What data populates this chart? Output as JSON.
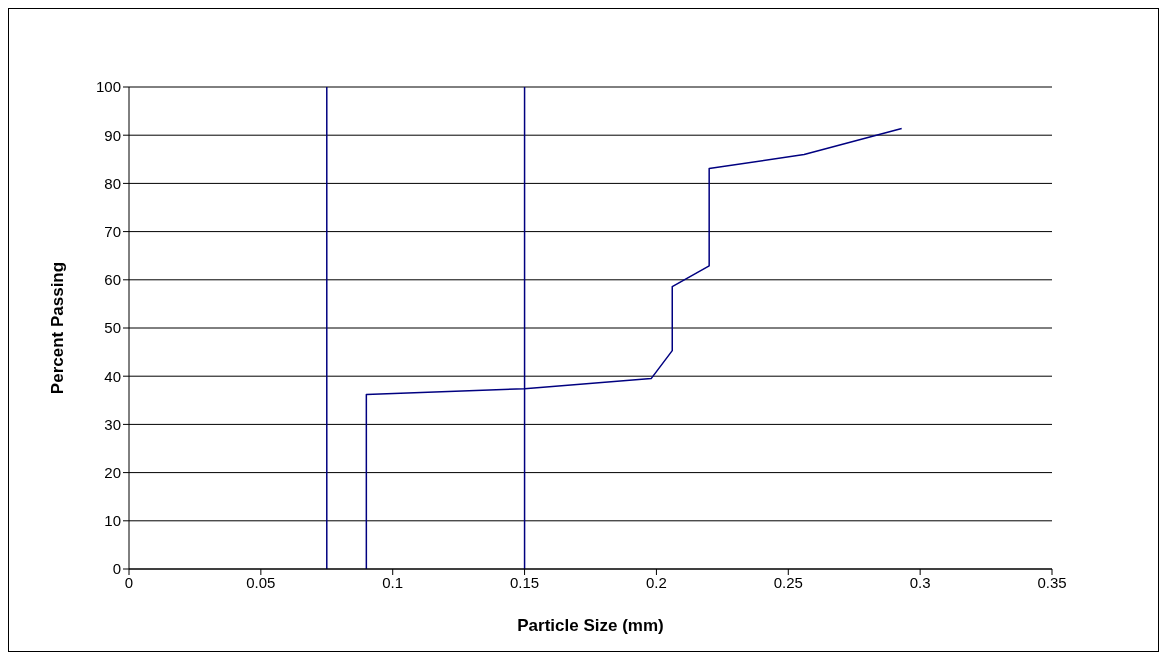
{
  "chart_data": {
    "type": "line",
    "xlabel": "Particle Size (mm)",
    "ylabel": "Percent Passing",
    "x": [
      0.09,
      0.09,
      0.15,
      0.198,
      0.206,
      0.206,
      0.22,
      0.22,
      0.256,
      0.293
    ],
    "series": [
      {
        "color": "#000080",
        "values": [
          0,
          36.2,
          37.4,
          39.5,
          45.3,
          58.6,
          62.9,
          83.1,
          86,
          91.4
        ]
      }
    ],
    "xlim": [
      0,
      0.35
    ],
    "xticks": [
      0,
      0.05,
      0.1,
      0.15,
      0.2,
      0.25,
      0.3,
      0.35
    ],
    "ylim": [
      0,
      100
    ],
    "yticks": [
      0,
      10,
      20,
      30,
      40,
      50,
      60,
      70,
      80,
      90,
      100
    ],
    "grid": "y",
    "legend": false,
    "marker": "none",
    "line_style": "solid",
    "ref_lines": [
      {
        "axis": "x",
        "value": 0.075,
        "color": "#000080"
      },
      {
        "axis": "x",
        "value": 0.15,
        "color": "#000080"
      }
    ]
  }
}
